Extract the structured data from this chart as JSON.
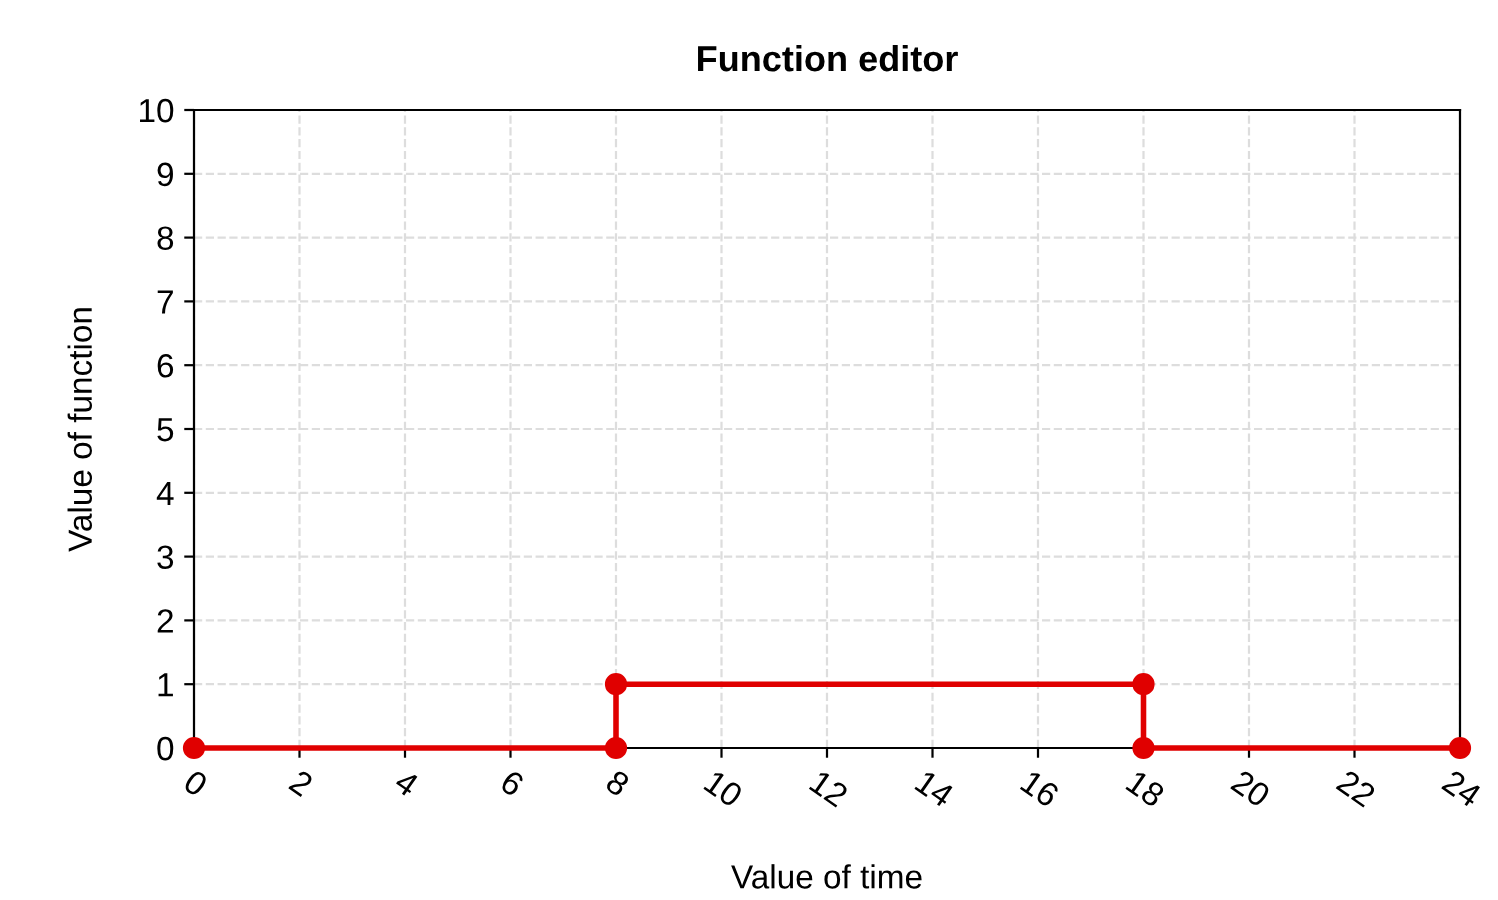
{
  "chart_data": {
    "type": "line",
    "title": "Function editor",
    "xlabel": "Value of time",
    "ylabel": "Value of function",
    "x": [
      0,
      8,
      8,
      18,
      18,
      24
    ],
    "series": [
      {
        "color": "#e00000",
        "values": [
          0,
          0,
          1,
          1,
          0,
          0
        ]
      }
    ],
    "xlim": [
      0,
      24
    ],
    "ylim": [
      0,
      10
    ],
    "xticks": [
      0,
      2,
      4,
      6,
      8,
      10,
      12,
      14,
      16,
      18,
      20,
      22,
      24
    ],
    "yticks": [
      0,
      1,
      2,
      3,
      4,
      5,
      6,
      7,
      8,
      9,
      10
    ],
    "grid": true,
    "marker": "circle",
    "line_style": "solid"
  }
}
